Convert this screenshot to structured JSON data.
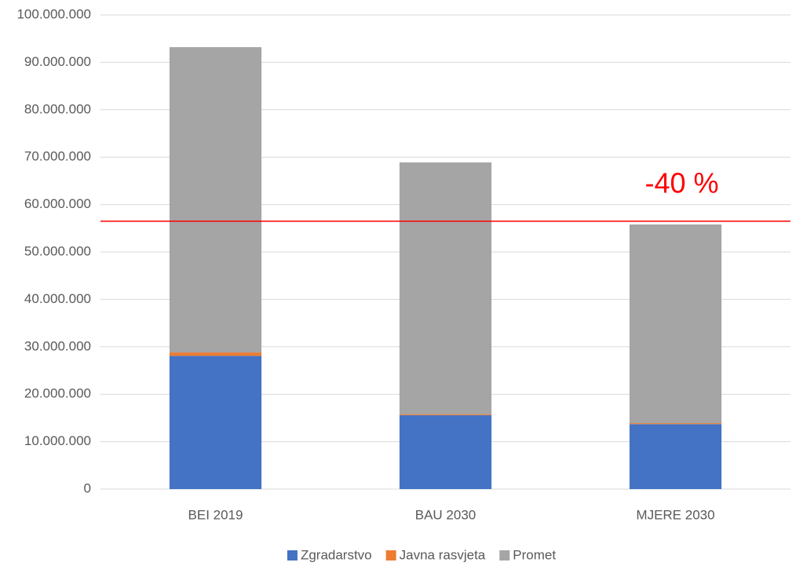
{
  "chart_data": {
    "type": "stacked_bar",
    "categories": [
      "BEI 2019",
      "BAU 2030",
      "MJERE 2030"
    ],
    "series": [
      {
        "name": "Zgradarstvo",
        "color": "#4472c4",
        "values": [
          28100000,
          15600000,
          13700000
        ]
      },
      {
        "name": "Javna rasvjeta",
        "color": "#ed7d31",
        "values": [
          700000,
          200000,
          200000
        ]
      },
      {
        "name": "Promet",
        "color": "#a5a5a5",
        "values": [
          64400000,
          53100000,
          41900000
        ]
      }
    ],
    "ylim": [
      0,
      100000000
    ],
    "yticks": [
      0,
      {
        "value": 10000000,
        "label": "10.000.000"
      },
      {
        "value": 20000000,
        "label": "20.000.000"
      },
      {
        "value": 30000000,
        "label": "30.000.000"
      },
      {
        "value": 40000000,
        "label": "40.000.000"
      },
      {
        "value": 50000000,
        "label": "50.000.000"
      },
      {
        "value": 60000000,
        "label": "60.000.000"
      },
      {
        "value": 70000000,
        "label": "70.000.000"
      },
      {
        "value": 80000000,
        "label": "80.000.000"
      },
      {
        "value": 90000000,
        "label": "90.000.000"
      },
      {
        "value": 100000000,
        "label": "100.000.000"
      }
    ],
    "grid": true,
    "reference_line": {
      "value": 56500000,
      "color": "#ff0000"
    },
    "annotations": [
      {
        "text": "-40 %",
        "color": "#ff0000"
      }
    ],
    "legend": "bottom"
  }
}
